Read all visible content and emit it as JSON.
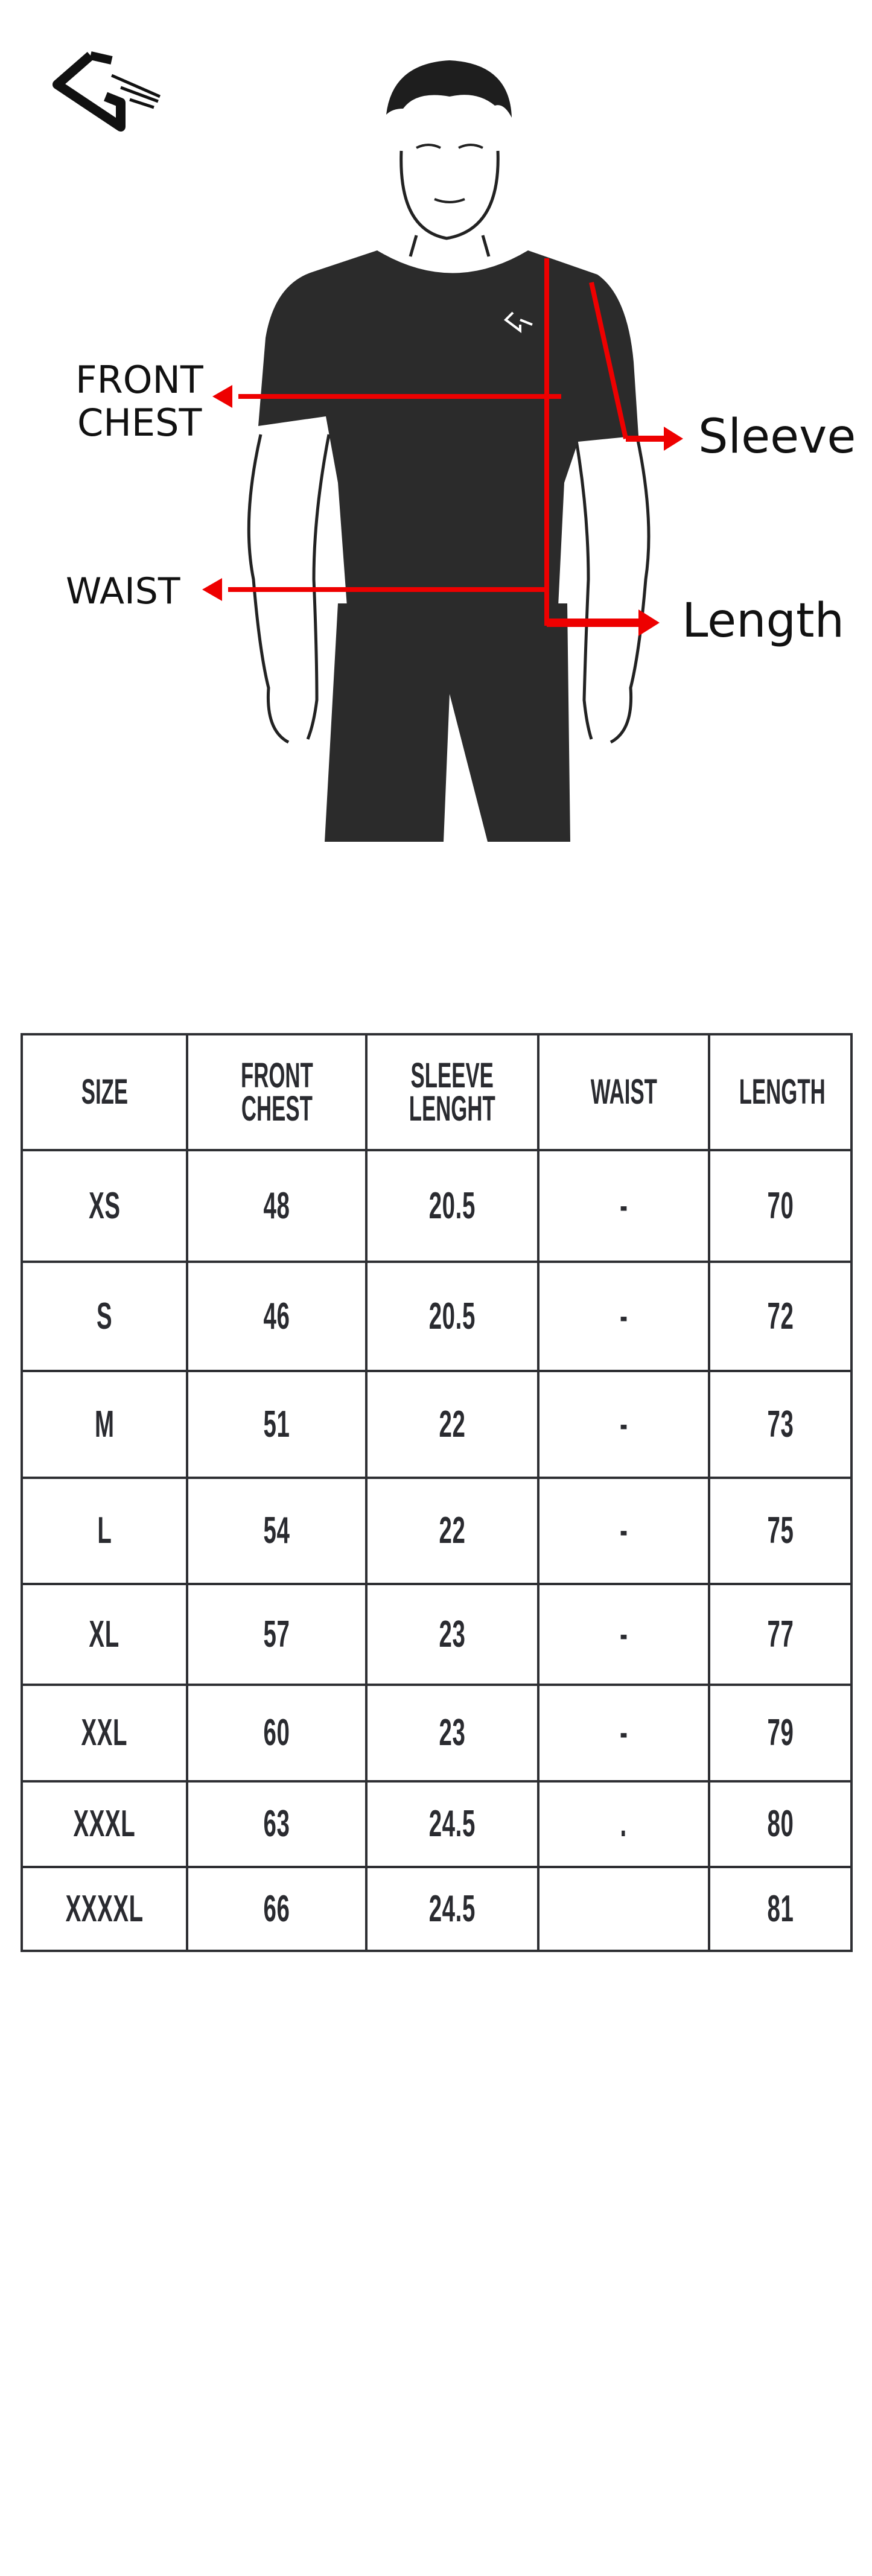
{
  "figure": {
    "labels": {
      "front": "FRONT",
      "chest": "CHEST",
      "waist": "WAIST",
      "sleeve": "Sleeve",
      "length": "Length"
    },
    "arrow_color": "#ee0000",
    "garment_color": "#2b2b2b"
  },
  "table": {
    "headers": [
      "SIZE",
      "FRONT\nCHEST",
      "SLEEVE\nLENGHT",
      "WAIST",
      "LENGTH"
    ],
    "rows": [
      [
        "XS",
        "48",
        "20.5",
        "-",
        "70"
      ],
      [
        "S",
        "46",
        "20.5",
        "-",
        "72"
      ],
      [
        "M",
        "51",
        "22",
        "-",
        "73"
      ],
      [
        "L",
        "54",
        "22",
        "-",
        "75"
      ],
      [
        "XL",
        "57",
        "23",
        "-",
        "77"
      ],
      [
        "XXL",
        "60",
        "23",
        "-",
        "79"
      ],
      [
        "XXXL",
        "63",
        "24.5",
        ".",
        "80"
      ],
      [
        "XXXXL",
        "66",
        "24.5",
        "",
        "81"
      ]
    ]
  }
}
